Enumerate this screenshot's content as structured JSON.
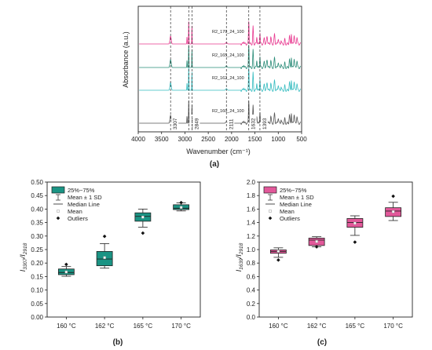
{
  "panel_labels": [
    "(a)",
    "(b)",
    "(c)"
  ],
  "chart_data": [
    {
      "type": "line",
      "panel": "(a)",
      "xlabel": "Wavenumber (cm⁻¹)",
      "ylabel": "Absorbance (a.u.)",
      "xlim": [
        4000,
        500
      ],
      "x_reversed": true,
      "xticks": [
        4000,
        3500,
        3000,
        2500,
        2000,
        1500,
        1000,
        500
      ],
      "grid": false,
      "series": [
        {
          "name": "R2_170_24_100",
          "color": "#e8388f"
        },
        {
          "name": "R2_165_24_100",
          "color": "#2a8c78"
        },
        {
          "name": "R2_162_24_100",
          "color": "#35bcc0"
        },
        {
          "name": "R2_160_24_100",
          "color": "#555555"
        }
      ],
      "reference_lines": [
        3307,
        2918,
        2849,
        2111,
        1632,
        1393
      ]
    },
    {
      "type": "box",
      "panel": "(b)",
      "ylabel": "I3307/I2918",
      "ylabel_main": "I",
      "ylabel_sub1": "3307",
      "ylabel_sep": "/I",
      "ylabel_sub2": "2918",
      "categories": [
        "160 °C",
        "162 °C",
        "165 °C",
        "170 °C"
      ],
      "ylim": [
        0.0,
        0.5
      ],
      "yticks": [
        "0.00",
        "0.05",
        "0.10",
        "0.15",
        "0.20",
        "0.25",
        "0.30",
        "0.35",
        "0.40",
        "0.45",
        "0.50"
      ],
      "color": "#1a9484",
      "boxes": [
        {
          "q1": 0.157,
          "q3": 0.178,
          "median": 0.165,
          "mean": 0.167,
          "whisker_low": 0.151,
          "whisker_high": 0.187,
          "outliers": [
            0.195
          ]
        },
        {
          "q1": 0.19,
          "q3": 0.243,
          "median": 0.215,
          "mean": 0.22,
          "whisker_low": 0.181,
          "whisker_high": 0.272,
          "outliers": [
            0.299
          ]
        },
        {
          "q1": 0.355,
          "q3": 0.386,
          "median": 0.373,
          "mean": 0.37,
          "whisker_low": 0.333,
          "whisker_high": 0.4,
          "outliers": [
            0.311
          ]
        },
        {
          "q1": 0.398,
          "q3": 0.416,
          "median": 0.403,
          "mean": 0.406,
          "whisker_low": 0.393,
          "whisker_high": 0.423,
          "outliers": [
            0.424
          ]
        }
      ],
      "legend": [
        "25%~75%",
        "Mean ± 1 SD",
        "Median Line",
        "Mean",
        "Outliers"
      ],
      "legend_position": "top-left"
    },
    {
      "type": "box",
      "panel": "(c)",
      "ylabel": "I1639/I2918",
      "ylabel_main": "I",
      "ylabel_sub1": "1639",
      "ylabel_sep": "/I",
      "ylabel_sub2": "2918",
      "categories": [
        "160 °C",
        "162 °C",
        "165 °C",
        "170 °C"
      ],
      "ylim": [
        0.0,
        2.0
      ],
      "yticks": [
        "0.0",
        "0.2",
        "0.4",
        "0.6",
        "0.8",
        "1.0",
        "1.2",
        "1.4",
        "1.6",
        "1.8",
        "2.0"
      ],
      "color": "#e2589a",
      "boxes": [
        {
          "q1": 0.945,
          "q3": 0.995,
          "median": 0.97,
          "mean": 0.975,
          "whisker_low": 0.885,
          "whisker_high": 1.025,
          "outliers": [
            0.845
          ]
        },
        {
          "q1": 1.06,
          "q3": 1.17,
          "median": 1.14,
          "mean": 1.12,
          "whisker_low": 1.04,
          "whisker_high": 1.19,
          "outliers": [
            1.04
          ]
        },
        {
          "q1": 1.33,
          "q3": 1.46,
          "median": 1.4,
          "mean": 1.39,
          "whisker_low": 1.21,
          "whisker_high": 1.5,
          "outliers": [
            1.11
          ]
        },
        {
          "q1": 1.49,
          "q3": 1.62,
          "median": 1.57,
          "mean": 1.56,
          "whisker_low": 1.43,
          "whisker_high": 1.7,
          "outliers": [
            1.79
          ]
        }
      ],
      "legend": [
        "25%~75%",
        "Mean ± 1 SD",
        "Median Line",
        "Mean",
        "Outliers"
      ],
      "legend_position": "top-left"
    }
  ]
}
